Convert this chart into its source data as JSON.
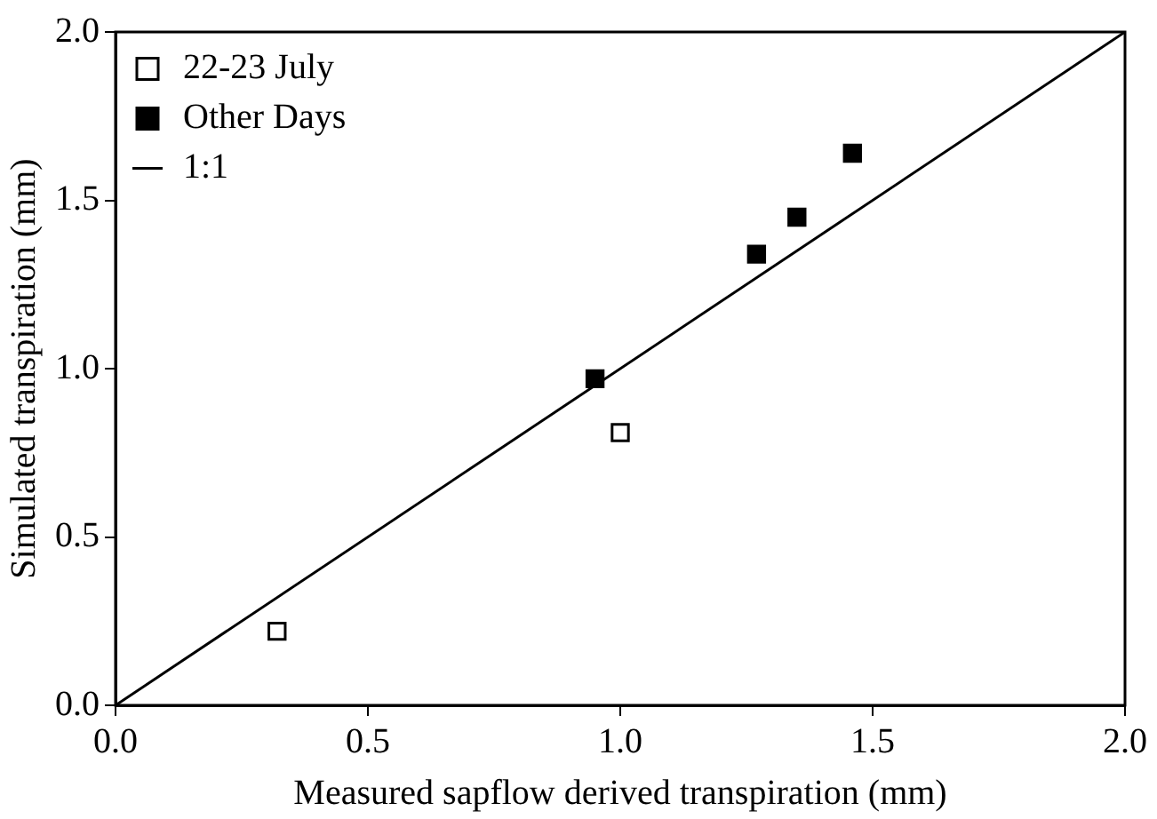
{
  "chart_data": {
    "type": "scatter",
    "xlabel": "Measured sapflow derived transpiration (mm)",
    "ylabel": "Simulated transpiration (mm)",
    "xlim": [
      0,
      2
    ],
    "ylim": [
      0,
      2
    ],
    "xticks": [
      {
        "value": 0,
        "label": "0.0"
      },
      {
        "value": 0.5,
        "label": "0.5"
      },
      {
        "value": 1,
        "label": "1.0"
      },
      {
        "value": 1.5,
        "label": "1.5"
      },
      {
        "value": 2,
        "label": "2.0"
      }
    ],
    "yticks": [
      {
        "value": 0,
        "label": "0.0"
      },
      {
        "value": 0.5,
        "label": "0.5"
      },
      {
        "value": 1,
        "label": "1.0"
      },
      {
        "value": 1.5,
        "label": "1.5"
      },
      {
        "value": 2,
        "label": "2.0"
      }
    ],
    "grid": false,
    "legend": "top left",
    "series": [
      {
        "name": "22-23 July",
        "type": "scatter",
        "marker": "square",
        "color": "#ffffff",
        "x": [
          0.32,
          1.0
        ],
        "values": [
          0.22,
          0.81
        ]
      },
      {
        "name": "Other Days",
        "type": "scatter",
        "marker": "square",
        "color": "#000000",
        "x": [
          0.95,
          1.27,
          1.35,
          1.46
        ],
        "values": [
          0.97,
          1.34,
          1.45,
          1.64
        ]
      },
      {
        "name": "1:1",
        "type": "line",
        "marker": "none",
        "color": "#000000",
        "line_style": "solid",
        "x": [
          0,
          2
        ],
        "values": [
          0,
          2
        ]
      }
    ]
  }
}
